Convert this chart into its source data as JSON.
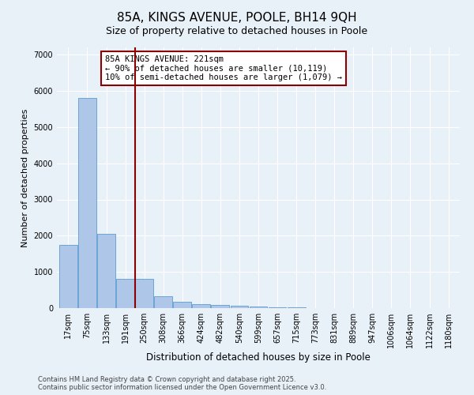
{
  "title": "85A, KINGS AVENUE, POOLE, BH14 9QH",
  "subtitle": "Size of property relative to detached houses in Poole",
  "xlabel": "Distribution of detached houses by size in Poole",
  "ylabel": "Number of detached properties",
  "categories": [
    "17sqm",
    "75sqm",
    "133sqm",
    "191sqm",
    "250sqm",
    "308sqm",
    "366sqm",
    "424sqm",
    "482sqm",
    "540sqm",
    "599sqm",
    "657sqm",
    "715sqm",
    "773sqm",
    "831sqm",
    "889sqm",
    "947sqm",
    "1006sqm",
    "1064sqm",
    "1122sqm",
    "1180sqm"
  ],
  "values": [
    1750,
    5800,
    2060,
    800,
    800,
    330,
    185,
    120,
    85,
    65,
    45,
    30,
    20,
    10,
    8,
    5,
    3,
    2,
    1,
    1,
    0
  ],
  "bar_color": "#aec6e8",
  "bar_edge_color": "#5b9bd5",
  "vline_x": 3.52,
  "vline_color": "#8b0000",
  "annotation_text": "85A KINGS AVENUE: 221sqm\n← 90% of detached houses are smaller (10,119)\n10% of semi-detached houses are larger (1,079) →",
  "annotation_box_color": "#8b0000",
  "annotation_bg": "#ffffff",
  "ylim": [
    0,
    7200
  ],
  "yticks": [
    0,
    1000,
    2000,
    3000,
    4000,
    5000,
    6000,
    7000
  ],
  "background_color": "#e8f0f8",
  "plot_bg_color": "#e8f0f8",
  "footer_line1": "Contains HM Land Registry data © Crown copyright and database right 2025.",
  "footer_line2": "Contains public sector information licensed under the Open Government Licence v3.0.",
  "title_fontsize": 11,
  "subtitle_fontsize": 9,
  "tick_fontsize": 7,
  "ylabel_fontsize": 8,
  "xlabel_fontsize": 8.5,
  "annot_fontsize": 7.5,
  "footer_fontsize": 6
}
